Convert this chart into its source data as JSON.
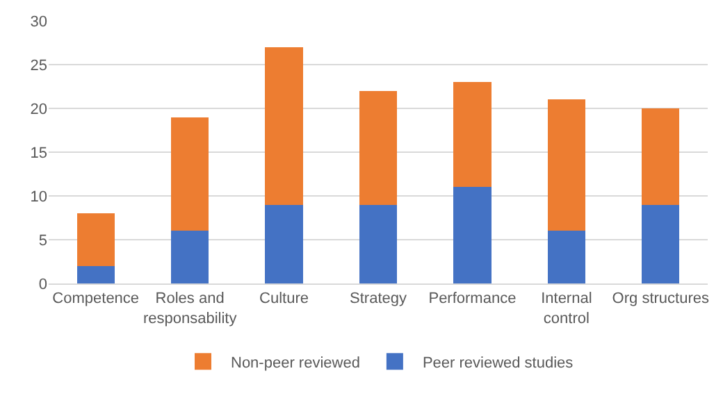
{
  "chart_data": {
    "type": "bar",
    "stacked": true,
    "categories": [
      "Competence",
      "Roles and responsability",
      "Culture",
      "Strategy",
      "Performance",
      "Internal control",
      "Org structures"
    ],
    "series": [
      {
        "name": "Peer reviewed studies",
        "color": "#4472c4",
        "values": [
          2,
          6,
          9,
          9,
          11,
          6,
          9
        ]
      },
      {
        "name": "Non-peer reviewed",
        "color": "#ed7d31",
        "values": [
          6,
          13,
          18,
          13,
          12,
          15,
          11
        ]
      }
    ],
    "ylim": [
      0,
      30
    ],
    "yticks": [
      0,
      5,
      10,
      15,
      20,
      25,
      30
    ],
    "grid": "y",
    "legend": "bottom"
  }
}
